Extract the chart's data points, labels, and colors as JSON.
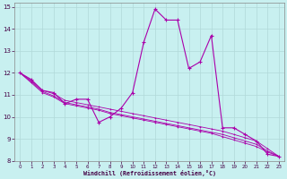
{
  "xlabel": "Windchill (Refroidissement éolien,°C)",
  "background_color": "#c8f0f0",
  "grid_color": "#b0d8d8",
  "line_color": "#aa00aa",
  "xlim": [
    -0.5,
    23.5
  ],
  "ylim": [
    8,
    15.2
  ],
  "yticks": [
    8,
    9,
    10,
    11,
    12,
    13,
    14,
    15
  ],
  "xticks": [
    0,
    1,
    2,
    3,
    4,
    5,
    6,
    7,
    8,
    9,
    10,
    11,
    12,
    13,
    14,
    15,
    16,
    17,
    18,
    19,
    20,
    21,
    22,
    23
  ],
  "spiky_line": [
    12.0,
    11.7,
    11.2,
    11.1,
    10.6,
    10.8,
    10.8,
    9.75,
    10.0,
    10.4,
    11.1,
    13.4,
    14.9,
    14.4,
    14.4,
    12.2,
    12.5,
    13.7,
    9.5,
    9.5,
    9.2,
    8.9,
    8.3,
    8.2
  ],
  "line1": [
    12.0,
    11.65,
    11.2,
    11.05,
    10.75,
    10.65,
    10.55,
    10.45,
    10.35,
    10.25,
    10.15,
    10.05,
    9.95,
    9.85,
    9.75,
    9.65,
    9.55,
    9.45,
    9.35,
    9.2,
    9.05,
    8.9,
    8.55,
    8.2
  ],
  "line2": [
    12.0,
    11.6,
    11.15,
    10.95,
    10.65,
    10.55,
    10.45,
    10.35,
    10.2,
    10.1,
    10.0,
    9.9,
    9.8,
    9.7,
    9.6,
    9.5,
    9.4,
    9.3,
    9.2,
    9.05,
    8.9,
    8.75,
    8.45,
    8.2
  ],
  "line3": [
    12.0,
    11.55,
    11.1,
    10.9,
    10.6,
    10.5,
    10.4,
    10.3,
    10.15,
    10.05,
    9.95,
    9.85,
    9.75,
    9.65,
    9.55,
    9.45,
    9.35,
    9.25,
    9.1,
    8.95,
    8.8,
    8.65,
    8.4,
    8.2
  ]
}
